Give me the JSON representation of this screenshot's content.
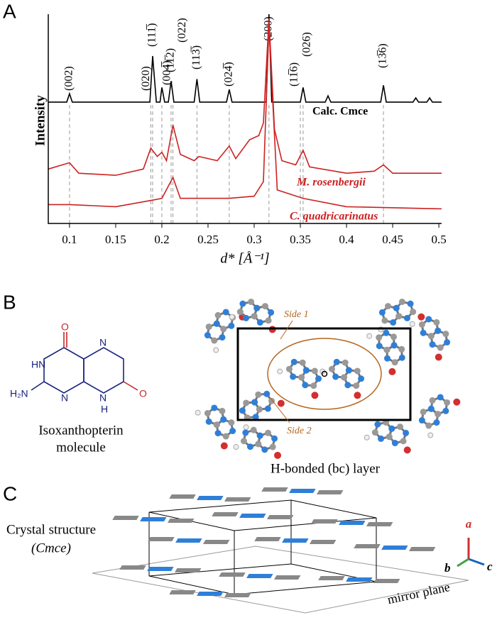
{
  "panel_labels": [
    "A",
    "B",
    "C"
  ],
  "chart_data": {
    "type": "line",
    "x_label": "d* [Å⁻¹]",
    "y_label": "Intensity",
    "xlim": [
      0.077,
      0.503
    ],
    "ylim": [
      0,
      100
    ],
    "xticks": [
      0.1,
      0.15,
      0.2,
      0.25,
      0.3,
      0.35,
      0.4,
      0.45,
      0.5
    ],
    "peaks": [
      {
        "label": "(002)",
        "x": 0.1
      },
      {
        "label": "(020)",
        "x": 0.188
      },
      {
        "label": "(111̅)",
        "x": 0.19
      },
      {
        "label": "(004̅)",
        "x": 0.2
      },
      {
        "label": "(11̅2)",
        "x": 0.21
      },
      {
        "label": "(022)",
        "x": 0.212
      },
      {
        "label": "(113̅)",
        "x": 0.238
      },
      {
        "label": "(024̅)",
        "x": 0.273
      },
      {
        "label": "(200)",
        "x": 0.316
      },
      {
        "label": "(11̅6)",
        "x": 0.35
      },
      {
        "label": "(026)",
        "x": 0.353
      },
      {
        "label": "(13̅6)",
        "x": 0.44
      }
    ],
    "series": [
      {
        "name": "Calc. Cmce",
        "color": "#000000",
        "x": [
          0.077,
          0.097,
          0.1,
          0.103,
          0.187,
          0.19,
          0.194,
          0.198,
          0.2,
          0.203,
          0.207,
          0.21,
          0.213,
          0.235,
          0.238,
          0.241,
          0.27,
          0.273,
          0.276,
          0.313,
          0.316,
          0.319,
          0.35,
          0.353,
          0.356,
          0.377,
          0.38,
          0.383,
          0.437,
          0.44,
          0.443,
          0.472,
          0.475,
          0.478,
          0.487,
          0.49,
          0.493,
          0.503
        ],
        "values": [
          58,
          58,
          62,
          58,
          58,
          80,
          58,
          58,
          65,
          58,
          58,
          68,
          58,
          58,
          69,
          58,
          58,
          64,
          58,
          58,
          100,
          58,
          58,
          65,
          58,
          58,
          61,
          58,
          58,
          66,
          58,
          58,
          60,
          58,
          58,
          60,
          58,
          58
        ]
      },
      {
        "name": "M. rosenbergii",
        "color": "#cc2222",
        "x": [
          0.077,
          0.1,
          0.11,
          0.15,
          0.18,
          0.188,
          0.195,
          0.2,
          0.205,
          0.212,
          0.22,
          0.235,
          0.24,
          0.26,
          0.273,
          0.28,
          0.295,
          0.305,
          0.31,
          0.316,
          0.322,
          0.33,
          0.345,
          0.353,
          0.36,
          0.4,
          0.43,
          0.44,
          0.45,
          0.503
        ],
        "values": [
          26,
          29,
          24,
          23,
          26,
          36,
          32,
          34,
          30,
          47,
          33,
          30,
          32,
          30,
          37,
          31,
          40,
          42,
          48,
          98,
          45,
          30,
          28,
          35,
          27,
          24,
          25,
          28,
          24,
          24
        ]
      },
      {
        "name": "C. quadricarinatus",
        "color": "#cc2222",
        "x": [
          0.077,
          0.1,
          0.15,
          0.188,
          0.2,
          0.212,
          0.22,
          0.273,
          0.3,
          0.31,
          0.316,
          0.325,
          0.353,
          0.4,
          0.503
        ],
        "values": [
          9,
          9,
          8,
          11,
          12,
          22,
          12,
          12,
          13,
          20,
          94,
          16,
          12,
          8,
          7
        ]
      }
    ]
  },
  "panel_b": {
    "molecule_caption": [
      "Isoxanthopterin",
      "molecule"
    ],
    "atoms": [
      "O",
      "N",
      "HN",
      "H₂N",
      "N",
      "N",
      "H",
      "O"
    ],
    "layer_caption": "H-bonded (bc) layer",
    "side_labels": [
      "Side 1",
      "Side 2"
    ]
  },
  "panel_c": {
    "caption": [
      "Crystal structure",
      "(Cmce)"
    ],
    "axes": [
      "a",
      "b",
      "c"
    ],
    "plane_label": "mirror plane"
  }
}
